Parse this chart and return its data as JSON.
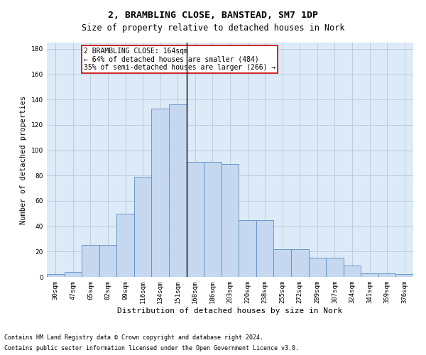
{
  "title": "2, BRAMBLING CLOSE, BANSTEAD, SM7 1DP",
  "subtitle": "Size of property relative to detached houses in Nork",
  "xlabel": "Distribution of detached houses by size in Nork",
  "ylabel": "Number of detached properties",
  "categories": [
    "30sqm",
    "47sqm",
    "65sqm",
    "82sqm",
    "99sqm",
    "116sqm",
    "134sqm",
    "151sqm",
    "168sqm",
    "186sqm",
    "203sqm",
    "220sqm",
    "238sqm",
    "255sqm",
    "272sqm",
    "289sqm",
    "307sqm",
    "324sqm",
    "341sqm",
    "359sqm",
    "376sqm"
  ],
  "values": [
    2,
    4,
    25,
    25,
    50,
    79,
    133,
    136,
    91,
    91,
    89,
    45,
    45,
    22,
    22,
    15,
    15,
    9,
    3,
    3,
    2
  ],
  "bar_color": "#c5d8f0",
  "bar_edge_color": "#5b8ec4",
  "plot_bg_color": "#ddeaf7",
  "background_color": "#ffffff",
  "grid_color": "#b8c8d8",
  "vline_x_index": 8,
  "vline_label": "2 BRAMBLING CLOSE: 164sqm",
  "annotation_line1": "← 64% of detached houses are smaller (484)",
  "annotation_line2": "35% of semi-detached houses are larger (266) →",
  "annotation_box_color": "#ffffff",
  "annotation_box_edge_color": "#cc0000",
  "footer_line1": "Contains HM Land Registry data © Crown copyright and database right 2024.",
  "footer_line2": "Contains public sector information licensed under the Open Government Licence v3.0.",
  "ylim": [
    0,
    185
  ],
  "yticks": [
    0,
    20,
    40,
    60,
    80,
    100,
    120,
    140,
    160,
    180
  ],
  "title_fontsize": 9.5,
  "subtitle_fontsize": 8.5,
  "xlabel_fontsize": 8,
  "ylabel_fontsize": 7.5,
  "tick_fontsize": 6.5,
  "annotation_fontsize": 7,
  "footer_fontsize": 6
}
